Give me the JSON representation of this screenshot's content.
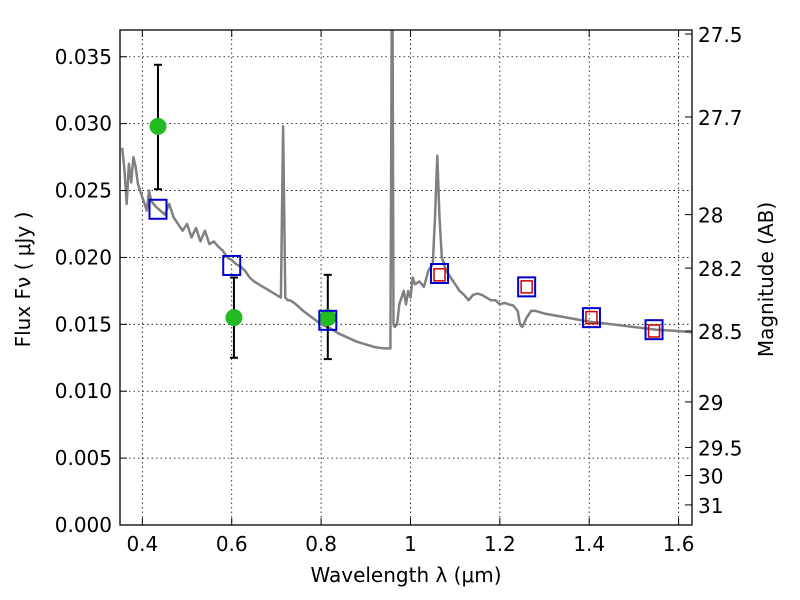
{
  "chart_data": {
    "type": "scatter",
    "xlabel": "Wavelength  λ (μm)",
    "ylabel": "Flux  Fν  ( μJy )",
    "y2label": "Magnitude (AB)",
    "xlim": [
      0.35,
      1.63
    ],
    "ylim": [
      0.0,
      0.037
    ],
    "grid": true,
    "x_ticks": [
      0.4,
      0.6,
      0.8,
      1.0,
      1.2,
      1.4,
      1.6
    ],
    "x_tick_labels": [
      "0.4",
      "0.6",
      "0.8",
      "1",
      "1.2",
      "1.4",
      "1.6"
    ],
    "y_ticks": [
      0.0,
      0.005,
      0.01,
      0.015,
      0.02,
      0.025,
      0.03,
      0.035
    ],
    "y_tick_labels": [
      "0.000",
      "0.005",
      "0.010",
      "0.015",
      "0.020",
      "0.025",
      "0.030",
      "0.035"
    ],
    "y2_ticks": [
      {
        "label": "27.5",
        "flux": 0.0367
      },
      {
        "label": "27.7",
        "flux": 0.0305
      },
      {
        "label": "28",
        "flux": 0.0232
      },
      {
        "label": "28.2",
        "flux": 0.0192
      },
      {
        "label": "28.5",
        "flux": 0.0145
      },
      {
        "label": "29",
        "flux": 0.0092
      },
      {
        "label": "29.5",
        "flux": 0.0058
      },
      {
        "label": "30",
        "flux": 0.0037
      },
      {
        "label": "31",
        "flux": 0.0015
      }
    ],
    "series": [
      {
        "kind": "line",
        "color": "#808080",
        "x": [
          0.355,
          0.36,
          0.365,
          0.37,
          0.375,
          0.38,
          0.385,
          0.39,
          0.395,
          0.4,
          0.405,
          0.41,
          0.415,
          0.42,
          0.43,
          0.44,
          0.45,
          0.46,
          0.47,
          0.48,
          0.49,
          0.5,
          0.51,
          0.52,
          0.53,
          0.54,
          0.55,
          0.56,
          0.57,
          0.58,
          0.59,
          0.6,
          0.61,
          0.62,
          0.63,
          0.64,
          0.65,
          0.66,
          0.67,
          0.68,
          0.69,
          0.7,
          0.71,
          0.715,
          0.72,
          0.725,
          0.73,
          0.74,
          0.75,
          0.76,
          0.78,
          0.8,
          0.82,
          0.84,
          0.86,
          0.88,
          0.9,
          0.92,
          0.94,
          0.955,
          0.958,
          0.96,
          0.962,
          0.965,
          0.97,
          0.975,
          0.98,
          0.985,
          0.99,
          0.995,
          1.0,
          1.005,
          1.01,
          1.02,
          1.03,
          1.04,
          1.05,
          1.055,
          1.06,
          1.065,
          1.07,
          1.08,
          1.09,
          1.1,
          1.11,
          1.12,
          1.13,
          1.14,
          1.15,
          1.16,
          1.17,
          1.18,
          1.19,
          1.2,
          1.21,
          1.22,
          1.23,
          1.24,
          1.245,
          1.25,
          1.26,
          1.27,
          1.28,
          1.3,
          1.35,
          1.4,
          1.45,
          1.5,
          1.55,
          1.6,
          1.63
        ],
        "y": [
          0.0282,
          0.0265,
          0.024,
          0.027,
          0.0256,
          0.0275,
          0.0268,
          0.0255,
          0.025,
          0.0245,
          0.024,
          0.0235,
          0.025,
          0.0242,
          0.0238,
          0.0235,
          0.0232,
          0.024,
          0.023,
          0.0225,
          0.022,
          0.0225,
          0.0215,
          0.0222,
          0.0212,
          0.022,
          0.021,
          0.0212,
          0.0208,
          0.0205,
          0.02,
          0.0198,
          0.0195,
          0.0193,
          0.019,
          0.0185,
          0.0182,
          0.018,
          0.0178,
          0.0176,
          0.0174,
          0.0172,
          0.017,
          0.0298,
          0.017,
          0.0168,
          0.0168,
          0.0166,
          0.0163,
          0.016,
          0.0155,
          0.015,
          0.0147,
          0.0143,
          0.014,
          0.0137,
          0.0135,
          0.0133,
          0.0132,
          0.0132,
          0.037,
          0.037,
          0.015,
          0.0148,
          0.015,
          0.0165,
          0.017,
          0.0175,
          0.0165,
          0.0175,
          0.017,
          0.0185,
          0.018,
          0.0182,
          0.0178,
          0.019,
          0.0195,
          0.023,
          0.0276,
          0.023,
          0.02,
          0.019,
          0.0185,
          0.018,
          0.0175,
          0.0172,
          0.0168,
          0.0172,
          0.0173,
          0.0172,
          0.017,
          0.0168,
          0.0168,
          0.0165,
          0.0166,
          0.0165,
          0.0164,
          0.016,
          0.015,
          0.0148,
          0.0155,
          0.016,
          0.016,
          0.0158,
          0.0155,
          0.0152,
          0.015,
          0.0148,
          0.0146,
          0.0145,
          0.0144
        ]
      },
      {
        "kind": "errorbar-points",
        "color": "#22bb22",
        "x": [
          0.435,
          0.605,
          0.815
        ],
        "y": [
          0.0298,
          0.0155,
          0.0155
        ],
        "y_low": [
          0.0251,
          0.0125,
          0.0124
        ],
        "y_high": [
          0.0344,
          0.0185,
          0.0187
        ]
      },
      {
        "kind": "blue-squares",
        "color": "#0000cc",
        "x": [
          0.435,
          0.6,
          0.815,
          1.065,
          1.26,
          1.405,
          1.545
        ],
        "y": [
          0.0236,
          0.0194,
          0.0153,
          0.0188,
          0.0178,
          0.0155,
          0.0146
        ]
      },
      {
        "kind": "red-squares",
        "color": "#cc0000",
        "x": [
          1.065,
          1.26,
          1.405,
          1.545
        ],
        "y": [
          0.0187,
          0.0178,
          0.0155,
          0.0145
        ]
      }
    ]
  }
}
